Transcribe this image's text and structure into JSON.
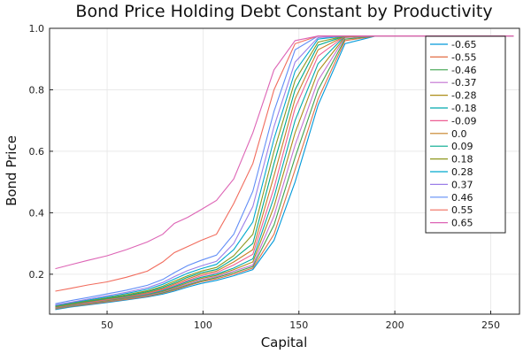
{
  "chart_data": {
    "type": "line",
    "title": "Bond Price Holding Debt Constant by Productivity",
    "xlabel": "Capital",
    "ylabel": "Bond Price",
    "xlim": [
      20,
      265
    ],
    "ylim": [
      0.07,
      1.0
    ],
    "x_ticks": [
      50,
      100,
      150,
      200,
      250
    ],
    "y_ticks": [
      0.2,
      0.4,
      0.6,
      0.8,
      1.0
    ],
    "x_tick_labels": [
      "50",
      "100",
      "150",
      "200",
      "250"
    ],
    "y_tick_labels": [
      "0.2",
      "0.4",
      "0.6",
      "0.8",
      "1.0"
    ],
    "grid": true,
    "legend_position": "top-right",
    "x": [
      23,
      31,
      40,
      50,
      60,
      71,
      79,
      85,
      92,
      99,
      107,
      116,
      126,
      137,
      148,
      160,
      174,
      190,
      262
    ],
    "series": [
      {
        "name": "-0.65",
        "color": "#0099d9",
        "values": [
          0.085,
          0.093,
          0.1,
          0.108,
          0.116,
          0.126,
          0.135,
          0.145,
          0.158,
          0.17,
          0.18,
          0.195,
          0.215,
          0.31,
          0.5,
          0.75,
          0.95,
          0.975,
          0.975
        ]
      },
      {
        "name": "-0.55",
        "color": "#e26f46",
        "values": [
          0.087,
          0.095,
          0.102,
          0.11,
          0.118,
          0.128,
          0.138,
          0.148,
          0.162,
          0.175,
          0.185,
          0.2,
          0.22,
          0.33,
          0.54,
          0.77,
          0.96,
          0.975,
          0.975
        ]
      },
      {
        "name": "-0.46",
        "color": "#3da44d",
        "values": [
          0.088,
          0.096,
          0.104,
          0.112,
          0.12,
          0.13,
          0.14,
          0.151,
          0.165,
          0.178,
          0.189,
          0.205,
          0.225,
          0.36,
          0.58,
          0.8,
          0.965,
          0.975,
          0.975
        ]
      },
      {
        "name": "-0.37",
        "color": "#c271d2",
        "values": [
          0.089,
          0.097,
          0.105,
          0.113,
          0.121,
          0.131,
          0.142,
          0.154,
          0.168,
          0.182,
          0.192,
          0.21,
          0.23,
          0.39,
          0.62,
          0.83,
          0.97,
          0.975,
          0.975
        ]
      },
      {
        "name": "-0.28",
        "color": "#ac8e18",
        "values": [
          0.09,
          0.098,
          0.106,
          0.114,
          0.122,
          0.133,
          0.144,
          0.157,
          0.172,
          0.186,
          0.196,
          0.215,
          0.24,
          0.42,
          0.66,
          0.86,
          0.972,
          0.975,
          0.975
        ]
      },
      {
        "name": "-0.18",
        "color": "#00a9ad",
        "values": [
          0.091,
          0.099,
          0.107,
          0.116,
          0.124,
          0.135,
          0.147,
          0.16,
          0.176,
          0.19,
          0.2,
          0.22,
          0.25,
          0.45,
          0.7,
          0.885,
          0.975,
          0.975,
          0.975
        ]
      },
      {
        "name": "-0.09",
        "color": "#ed5e93",
        "values": [
          0.092,
          0.1,
          0.108,
          0.117,
          0.126,
          0.137,
          0.15,
          0.164,
          0.18,
          0.195,
          0.205,
          0.23,
          0.265,
          0.48,
          0.74,
          0.91,
          0.975,
          0.975,
          0.975
        ]
      },
      {
        "name": "0.0",
        "color": "#c68125",
        "values": [
          0.093,
          0.101,
          0.11,
          0.119,
          0.128,
          0.14,
          0.153,
          0.168,
          0.185,
          0.2,
          0.21,
          0.24,
          0.28,
          0.52,
          0.77,
          0.93,
          0.975,
          0.975,
          0.975
        ]
      },
      {
        "name": "0.09",
        "color": "#00a98d",
        "values": [
          0.095,
          0.103,
          0.112,
          0.121,
          0.13,
          0.143,
          0.157,
          0.172,
          0.19,
          0.205,
          0.215,
          0.25,
          0.3,
          0.56,
          0.8,
          0.945,
          0.975,
          0.975,
          0.975
        ]
      },
      {
        "name": "0.18",
        "color": "#8e971d",
        "values": [
          0.096,
          0.105,
          0.114,
          0.123,
          0.133,
          0.146,
          0.161,
          0.177,
          0.195,
          0.21,
          0.222,
          0.26,
          0.33,
          0.6,
          0.83,
          0.955,
          0.975,
          0.975,
          0.975
        ]
      },
      {
        "name": "0.28",
        "color": "#00a9cd",
        "values": [
          0.098,
          0.107,
          0.116,
          0.126,
          0.137,
          0.151,
          0.167,
          0.184,
          0.203,
          0.218,
          0.232,
          0.28,
          0.37,
          0.64,
          0.86,
          0.965,
          0.975,
          0.975,
          0.975
        ]
      },
      {
        "name": "0.37",
        "color": "#9b7fe8",
        "values": [
          0.1,
          0.109,
          0.119,
          0.13,
          0.141,
          0.156,
          0.173,
          0.192,
          0.212,
          0.227,
          0.242,
          0.3,
          0.42,
          0.68,
          0.89,
          0.97,
          0.975,
          0.975,
          0.975
        ]
      },
      {
        "name": "0.46",
        "color": "#618df6",
        "values": [
          0.104,
          0.114,
          0.124,
          0.136,
          0.148,
          0.164,
          0.183,
          0.205,
          0.228,
          0.245,
          0.262,
          0.33,
          0.47,
          0.73,
          0.93,
          0.975,
          0.975,
          0.975,
          0.975
        ]
      },
      {
        "name": "0.55",
        "color": "#f16c5d",
        "values": [
          0.145,
          0.154,
          0.165,
          0.175,
          0.19,
          0.21,
          0.24,
          0.27,
          0.29,
          0.31,
          0.33,
          0.43,
          0.56,
          0.8,
          0.95,
          0.975,
          0.975,
          0.975,
          0.975
        ]
      },
      {
        "name": "0.65",
        "color": "#dd64b5",
        "values": [
          0.218,
          0.231,
          0.245,
          0.26,
          0.28,
          0.305,
          0.33,
          0.365,
          0.385,
          0.41,
          0.44,
          0.51,
          0.66,
          0.865,
          0.96,
          0.975,
          0.975,
          0.975,
          0.975
        ]
      }
    ]
  }
}
